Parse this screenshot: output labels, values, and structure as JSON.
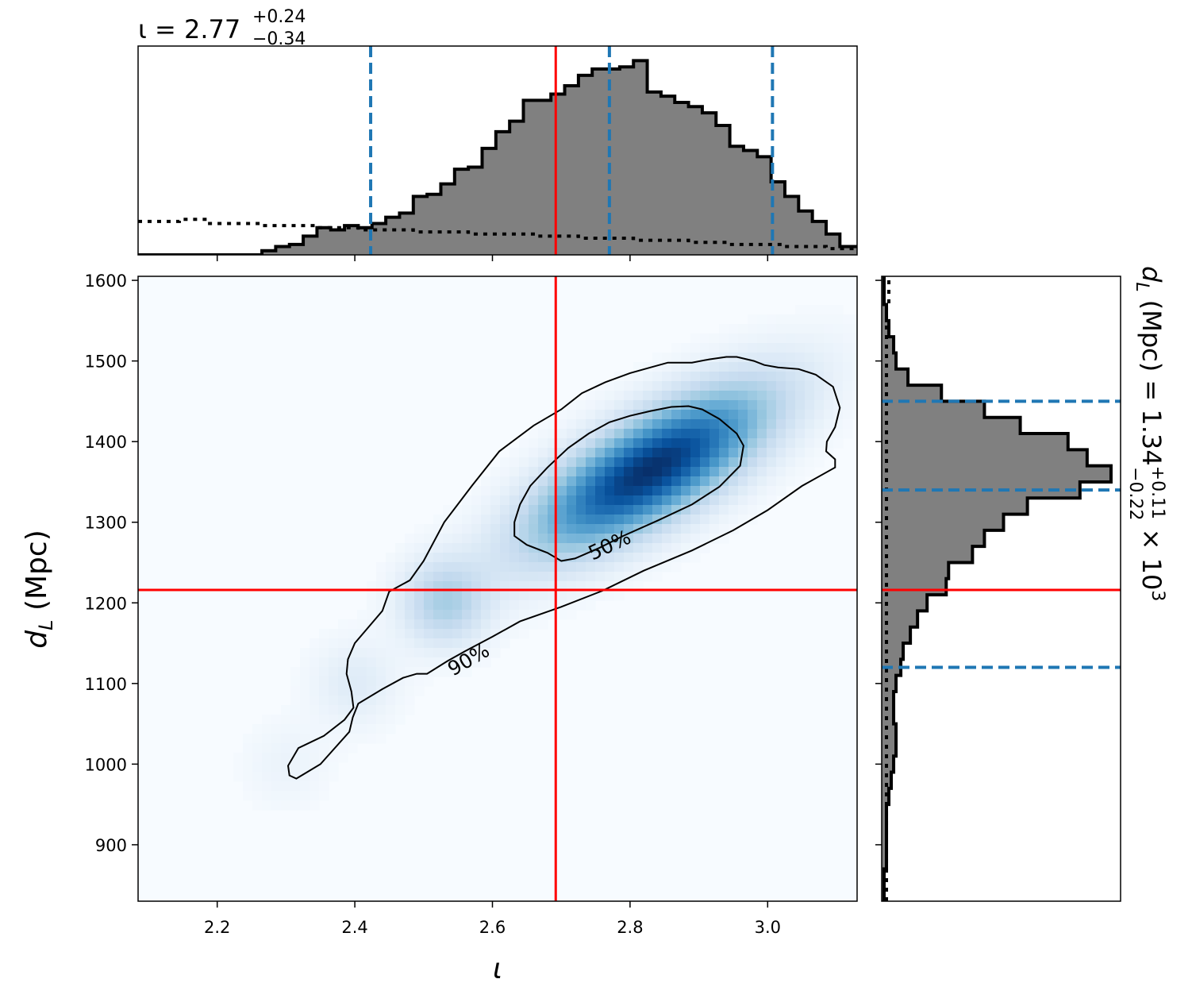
{
  "chart_data": [
    {
      "type": "heatmap",
      "name": "joint-posterior",
      "xlabel": "ι",
      "ylabel_main": "d",
      "ylabel_sub": "L",
      "ylabel_unit": " (Mpc)",
      "xlim": [
        2.085,
        3.13
      ],
      "ylim": [
        830,
        1605
      ],
      "x_ticks": [
        2.2,
        2.4,
        2.6,
        2.8,
        3.0
      ],
      "x_tick_labels": [
        "2.2",
        "2.4",
        "2.6",
        "2.8",
        "3.0"
      ],
      "y_ticks": [
        900,
        1000,
        1100,
        1200,
        1300,
        1400,
        1500,
        1600
      ],
      "y_tick_labels": [
        "900",
        "1000",
        "1100",
        "1200",
        "1300",
        "1400",
        "1500",
        "1600"
      ],
      "density": {
        "colormap": "Blues",
        "peak": [
          2.83,
          1365
        ],
        "angle_deg": 31,
        "sigma_major": 0.135,
        "sigma_minor_mpc": 42,
        "tail_points": [
          {
            "x": 2.53,
            "y": 1200,
            "weight": 0.32
          },
          {
            "x": 2.4,
            "y": 1100,
            "weight": 0.12
          },
          {
            "x": 2.3,
            "y": 1000,
            "weight": 0.06
          }
        ]
      },
      "contours": [
        {
          "label": "90%",
          "label_at": [
            2.565,
            1130
          ],
          "label_angle_deg": -30,
          "points": [
            [
              2.303,
              998
            ],
            [
              2.305,
              986
            ],
            [
              2.315,
              982
            ],
            [
              2.35,
              1000
            ],
            [
              2.392,
              1040
            ],
            [
              2.397,
              1058
            ],
            [
              2.405,
              1075
            ],
            [
              2.44,
              1093
            ],
            [
              2.47,
              1107
            ],
            [
              2.49,
              1112
            ],
            [
              2.505,
              1112
            ],
            [
              2.535,
              1128
            ],
            [
              2.56,
              1140
            ],
            [
              2.6,
              1158
            ],
            [
              2.64,
              1177
            ],
            [
              2.7,
              1195
            ],
            [
              2.76,
              1215
            ],
            [
              2.82,
              1240
            ],
            [
              2.89,
              1265
            ],
            [
              2.95,
              1290
            ],
            [
              3.0,
              1315
            ],
            [
              3.05,
              1345
            ],
            [
              3.098,
              1368
            ],
            [
              3.098,
              1378
            ],
            [
              3.085,
              1388
            ],
            [
              3.086,
              1400
            ],
            [
              3.098,
              1418
            ],
            [
              3.105,
              1442
            ],
            [
              3.095,
              1468
            ],
            [
              3.07,
              1483
            ],
            [
              3.045,
              1490
            ],
            [
              3.015,
              1492
            ],
            [
              2.995,
              1495
            ],
            [
              2.98,
              1500
            ],
            [
              2.955,
              1505
            ],
            [
              2.94,
              1505
            ],
            [
              2.915,
              1502
            ],
            [
              2.89,
              1498
            ],
            [
              2.855,
              1498
            ],
            [
              2.83,
              1492
            ],
            [
              2.8,
              1485
            ],
            [
              2.765,
              1474
            ],
            [
              2.73,
              1460
            ],
            [
              2.7,
              1440
            ],
            [
              2.66,
              1420
            ],
            [
              2.61,
              1388
            ],
            [
              2.57,
              1345
            ],
            [
              2.53,
              1300
            ],
            [
              2.5,
              1252
            ],
            [
              2.48,
              1228
            ],
            [
              2.45,
              1214
            ],
            [
              2.445,
              1202
            ],
            [
              2.44,
              1190
            ],
            [
              2.4,
              1150
            ],
            [
              2.39,
              1130
            ],
            [
              2.388,
              1112
            ],
            [
              2.395,
              1090
            ],
            [
              2.398,
              1070
            ],
            [
              2.385,
              1055
            ],
            [
              2.355,
              1035
            ],
            [
              2.318,
              1020
            ],
            [
              2.303,
              998
            ]
          ]
        },
        {
          "label": "50%",
          "label_at": [
            2.77,
            1272
          ],
          "label_angle_deg": -25,
          "points": [
            [
              2.7,
              1252
            ],
            [
              2.72,
              1255
            ],
            [
              2.755,
              1268
            ],
            [
              2.79,
              1283
            ],
            [
              2.84,
              1302
            ],
            [
              2.89,
              1322
            ],
            [
              2.93,
              1344
            ],
            [
              2.96,
              1370
            ],
            [
              2.965,
              1395
            ],
            [
              2.955,
              1410
            ],
            [
              2.93,
              1428
            ],
            [
              2.905,
              1440
            ],
            [
              2.885,
              1444
            ],
            [
              2.86,
              1443
            ],
            [
              2.83,
              1438
            ],
            [
              2.8,
              1432
            ],
            [
              2.77,
              1424
            ],
            [
              2.74,
              1410
            ],
            [
              2.71,
              1392
            ],
            [
              2.68,
              1368
            ],
            [
              2.655,
              1345
            ],
            [
              2.64,
              1322
            ],
            [
              2.632,
              1300
            ],
            [
              2.632,
              1283
            ],
            [
              2.65,
              1272
            ],
            [
              2.68,
              1262
            ],
            [
              2.7,
              1252
            ]
          ]
        }
      ],
      "true_value_lines": {
        "x": 2.692,
        "y": 1216,
        "color": "#ff0000"
      }
    },
    {
      "type": "bar",
      "name": "iota-marginal",
      "title_symbol": "ι",
      "title_equals": " = ",
      "title_value": "2.77",
      "title_plus": "+0.24",
      "title_minus": "−0.34",
      "xlim": [
        2.085,
        3.13
      ],
      "ylim": [
        0,
        1.0
      ],
      "bin_edges": [
        2.085,
        2.105,
        2.125,
        2.145,
        2.165,
        2.185,
        2.205,
        2.225,
        2.245,
        2.265,
        2.285,
        2.305,
        2.325,
        2.345,
        2.365,
        2.385,
        2.405,
        2.425,
        2.445,
        2.465,
        2.485,
        2.505,
        2.525,
        2.545,
        2.565,
        2.585,
        2.605,
        2.625,
        2.645,
        2.665,
        2.685,
        2.705,
        2.725,
        2.745,
        2.765,
        2.785,
        2.805,
        2.825,
        2.845,
        2.865,
        2.885,
        2.905,
        2.925,
        2.945,
        2.965,
        2.985,
        3.005,
        3.025,
        3.045,
        3.065,
        3.085,
        3.105,
        3.13
      ],
      "values": [
        0,
        0,
        0,
        0,
        0,
        0,
        0,
        0,
        0,
        0.02,
        0.04,
        0.05,
        0.09,
        0.13,
        0.12,
        0.14,
        0.13,
        0.15,
        0.18,
        0.2,
        0.28,
        0.29,
        0.34,
        0.41,
        0.42,
        0.51,
        0.59,
        0.64,
        0.74,
        0.74,
        0.77,
        0.81,
        0.86,
        0.89,
        0.89,
        0.9,
        0.93,
        0.78,
        0.76,
        0.73,
        0.71,
        0.68,
        0.62,
        0.52,
        0.5,
        0.47,
        0.35,
        0.28,
        0.21,
        0.16,
        0.1,
        0.04
      ],
      "prior": [
        0.16,
        0.16,
        0.16,
        0.17,
        0.17,
        0.15,
        0.15,
        0.15,
        0.15,
        0.14,
        0.14,
        0.14,
        0.14,
        0.13,
        0.13,
        0.13,
        0.12,
        0.12,
        0.12,
        0.12,
        0.11,
        0.11,
        0.11,
        0.11,
        0.1,
        0.1,
        0.1,
        0.1,
        0.1,
        0.09,
        0.09,
        0.09,
        0.08,
        0.08,
        0.08,
        0.08,
        0.07,
        0.07,
        0.07,
        0.07,
        0.06,
        0.06,
        0.06,
        0.05,
        0.05,
        0.05,
        0.05,
        0.04,
        0.04,
        0.04,
        0.03,
        0.03
      ],
      "credible_lines": [
        2.423,
        2.77,
        3.007
      ],
      "true_value": 2.692,
      "x_ticks": [
        2.2,
        2.4,
        2.6,
        2.8,
        3.0
      ]
    },
    {
      "type": "bar",
      "name": "dL-marginal",
      "orientation": "horizontal",
      "ylabel_symbol": "d",
      "ylabel_sub": "L",
      "ylabel_unit": " (Mpc) = ",
      "ylabel_value": "1.34",
      "ylabel_plus": "+0.11",
      "ylabel_minus": "−0.22",
      "ylabel_scale": " × 10",
      "ylabel_exp": "3",
      "ylim": [
        830,
        1605
      ],
      "xlim": [
        0,
        1.0
      ],
      "bin_edges": [
        830,
        850,
        870,
        890,
        910,
        930,
        950,
        970,
        990,
        1010,
        1030,
        1050,
        1070,
        1090,
        1110,
        1130,
        1150,
        1170,
        1190,
        1210,
        1230,
        1250,
        1270,
        1290,
        1310,
        1330,
        1350,
        1370,
        1390,
        1410,
        1430,
        1450,
        1470,
        1490,
        1510,
        1530,
        1550,
        1570,
        1590,
        1605
      ],
      "values": [
        0.01,
        0.01,
        0.02,
        0.02,
        0.02,
        0.02,
        0.03,
        0.04,
        0.05,
        0.06,
        0.06,
        0.05,
        0.05,
        0.06,
        0.08,
        0.09,
        0.12,
        0.15,
        0.19,
        0.27,
        0.28,
        0.38,
        0.43,
        0.51,
        0.61,
        0.83,
        0.96,
        0.86,
        0.78,
        0.58,
        0.43,
        0.25,
        0.11,
        0.06,
        0.05,
        0.03,
        0.02,
        0.01,
        0.01
      ],
      "prior": [
        0.02,
        0.02,
        0.02,
        0.02,
        0.02,
        0.02,
        0.02,
        0.02,
        0.02,
        0.02,
        0.02,
        0.02,
        0.02,
        0.02,
        0.02,
        0.02,
        0.02,
        0.02,
        0.02,
        0.02,
        0.02,
        0.02,
        0.02,
        0.02,
        0.02,
        0.02,
        0.02,
        0.02,
        0.02,
        0.02,
        0.02,
        0.02,
        0.02,
        0.02,
        0.02,
        0.02,
        0.02,
        0.03,
        0.03
      ],
      "credible_lines": [
        1120,
        1340,
        1450
      ],
      "true_value": 1216,
      "y_ticks": [
        900,
        1000,
        1100,
        1200,
        1300,
        1400,
        1500,
        1600
      ]
    }
  ]
}
